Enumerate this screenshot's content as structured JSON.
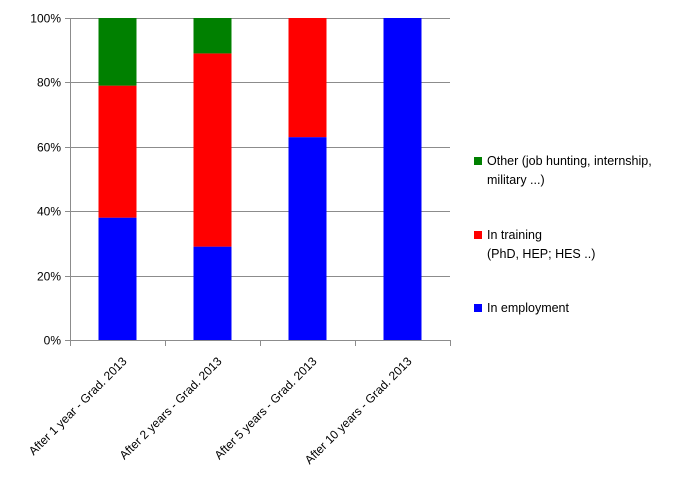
{
  "chart_data": {
    "type": "bar",
    "stacked": true,
    "categories": [
      "After 1 year - Grad. 2013",
      "After 2 years - Grad. 2013",
      "After 5 years - Grad. 2013",
      "After 10 years - Grad. 2013"
    ],
    "series": [
      {
        "name": "In employment",
        "color": "#0000ff",
        "values": [
          38,
          29,
          63,
          100
        ]
      },
      {
        "name": "In training (PhD, HEP; HES ..)",
        "color": "#ff0000",
        "values": [
          41,
          60,
          37,
          0
        ]
      },
      {
        "name": "Other (job hunting, internship, military ...)",
        "color": "#008000",
        "values": [
          21,
          11,
          0,
          0
        ]
      }
    ],
    "ylim": [
      0,
      100
    ],
    "yticks": [
      "0%",
      "20%",
      "40%",
      "60%",
      "80%",
      "100%"
    ],
    "grid": true,
    "legend_position": "right"
  },
  "legend": {
    "other_line1": "Other (job hunting, internship,",
    "other_line2": "military ...)",
    "training_line1": "In training",
    "training_line2": "(PhD, HEP; HES ..)",
    "employment": "In employment"
  }
}
